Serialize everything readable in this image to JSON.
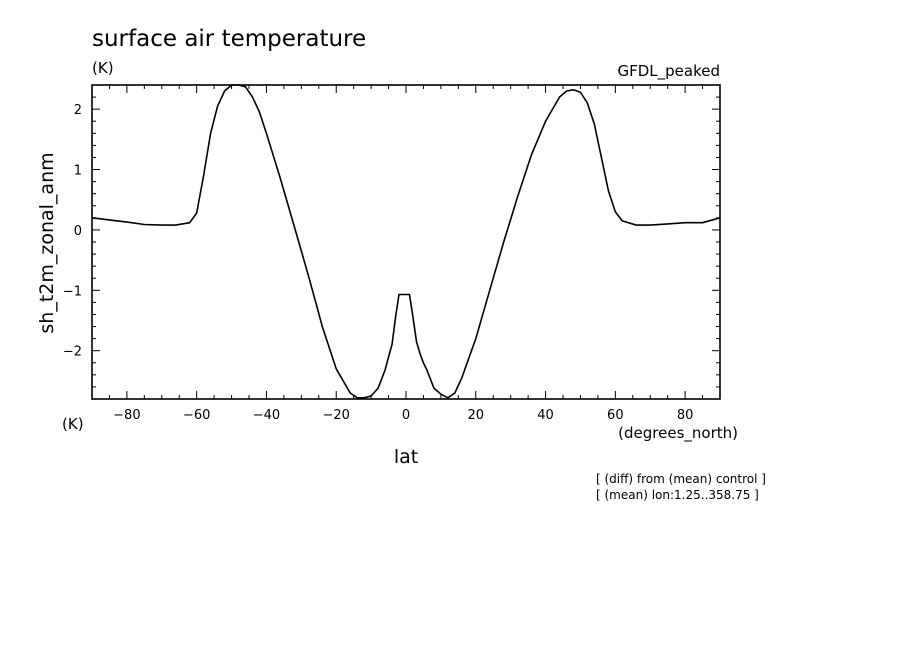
{
  "chart_data": {
    "type": "line",
    "title": "surface air temperature",
    "units_label": "(K)",
    "model_label": "GFDL_peaked",
    "xlabel": "lat",
    "xunits": "(degrees_north)",
    "ylabel": "sh_t2m_zonal_anm",
    "yunits": "(K)",
    "xlim": [
      -90,
      90
    ],
    "ylim": [
      -2.8,
      2.4
    ],
    "xticks": [
      -80,
      -60,
      -40,
      -20,
      0,
      20,
      40,
      60,
      80
    ],
    "xtick_labels": [
      "−80",
      "−60",
      "−40",
      "−20",
      "0",
      "20",
      "40",
      "60",
      "80"
    ],
    "yticks": [
      -2,
      -1,
      0,
      1,
      2
    ],
    "ytick_labels": [
      "−2",
      "−1",
      "0",
      "1",
      "2"
    ],
    "grid": false,
    "notes": [
      "[ (diff) from (mean) control ]",
      "[ (mean) lon:1.25..358.75 ]"
    ],
    "series": [
      {
        "x": [
          -90,
          -80,
          -75,
          -70,
          -66,
          -62,
          -60,
          -58,
          -56,
          -54,
          -52,
          -50,
          -48,
          -46,
          -44,
          -42,
          -40,
          -36,
          -32,
          -28,
          -24,
          -20,
          -16,
          -14,
          -12,
          -10,
          -8,
          -6,
          -5,
          -4,
          -3,
          -2,
          -1,
          0,
          1,
          2,
          3,
          4,
          5,
          6,
          8,
          10,
          12,
          14,
          16,
          20,
          24,
          28,
          32,
          36,
          40,
          44,
          46,
          48,
          50,
          52,
          54,
          56,
          58,
          60,
          62,
          66,
          70,
          75,
          80,
          85,
          90
        ],
        "y": [
          0.2,
          0.13,
          0.09,
          0.08,
          0.08,
          0.12,
          0.28,
          0.9,
          1.6,
          2.05,
          2.3,
          2.4,
          2.4,
          2.37,
          2.2,
          1.95,
          1.6,
          0.85,
          0.05,
          -0.75,
          -1.6,
          -2.3,
          -2.7,
          -2.78,
          -2.78,
          -2.75,
          -2.62,
          -2.32,
          -2.1,
          -1.9,
          -1.45,
          -1.07,
          -1.07,
          -1.07,
          -1.07,
          -1.45,
          -1.85,
          -2.05,
          -2.2,
          -2.32,
          -2.62,
          -2.72,
          -2.78,
          -2.7,
          -2.45,
          -1.8,
          -1.0,
          -0.2,
          0.55,
          1.25,
          1.8,
          2.2,
          2.3,
          2.32,
          2.28,
          2.1,
          1.75,
          1.2,
          0.65,
          0.3,
          0.15,
          0.08,
          0.08,
          0.1,
          0.12,
          0.12,
          0.2
        ]
      }
    ]
  }
}
